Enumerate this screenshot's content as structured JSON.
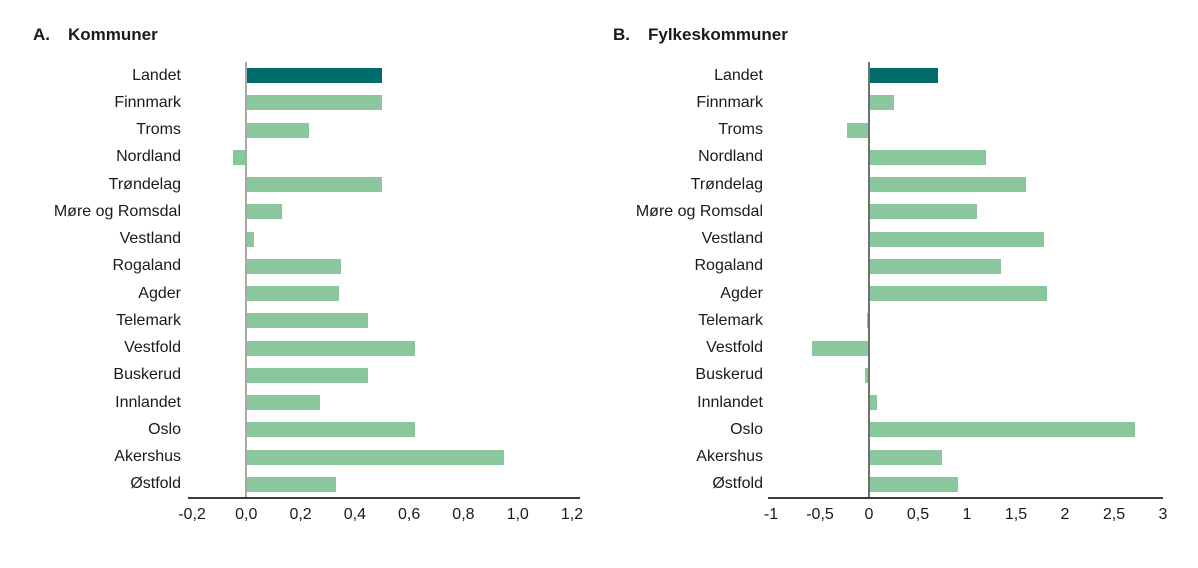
{
  "figure_background": "#ffffff",
  "chart_data": [
    {
      "type": "bar",
      "orientation": "horizontal",
      "panel_label": "A.",
      "title": "Kommuner",
      "categories": [
        "Landet",
        "Finnmark",
        "Troms",
        "Nordland",
        "Trøndelag",
        "Møre og Romsdal",
        "Vestland",
        "Rogaland",
        "Agder",
        "Telemark",
        "Vestfold",
        "Buskerud",
        "Innlandet",
        "Oslo",
        "Akershus",
        "Østfold"
      ],
      "values": [
        0.5,
        0.5,
        0.23,
        -0.05,
        0.5,
        0.13,
        0.03,
        0.35,
        0.34,
        0.45,
        0.62,
        0.45,
        0.27,
        0.62,
        0.95,
        0.33
      ],
      "highlight_category": "Landet",
      "xlim": [
        -0.2,
        1.2
      ],
      "xtick_labels": [
        "-0,2",
        "0,0",
        "0,2",
        "0,4",
        "0,6",
        "0,8",
        "1,0",
        "1,2"
      ],
      "bar_color": "#8ac79c",
      "highlight_color": "#006b6b",
      "zero_line_color": "#a8a8a8",
      "grid": "off",
      "legend": "none"
    },
    {
      "type": "bar",
      "orientation": "horizontal",
      "panel_label": "B.",
      "title": "Fylkeskommuner",
      "categories": [
        "Landet",
        "Finnmark",
        "Troms",
        "Nordland",
        "Trøndelag",
        "Møre og Romsdal",
        "Vestland",
        "Rogaland",
        "Agder",
        "Telemark",
        "Vestfold",
        "Buskerud",
        "Innlandet",
        "Oslo",
        "Akershus",
        "Østfold"
      ],
      "values": [
        0.7,
        0.25,
        -0.22,
        1.19,
        1.6,
        1.1,
        1.79,
        1.35,
        1.82,
        -0.02,
        -0.58,
        -0.04,
        0.08,
        2.71,
        0.74,
        0.91
      ],
      "highlight_category": "Landet",
      "xlim": [
        -1,
        3
      ],
      "xtick_labels": [
        "-1",
        "-0,5",
        "0",
        "0,5",
        "1",
        "1,5",
        "2",
        "2,5",
        "3"
      ],
      "bar_color": "#8ac79c",
      "highlight_color": "#006b6b",
      "zero_line_color": "#707070",
      "grid": "off",
      "legend": "none"
    }
  ]
}
